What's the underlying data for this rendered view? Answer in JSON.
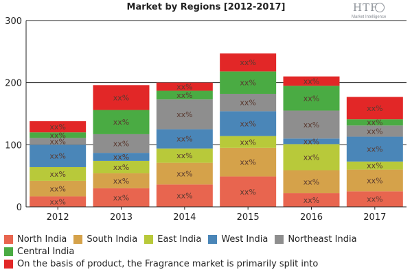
{
  "chart_data": {
    "type": "bar",
    "stacked": true,
    "title": "Market by Regions [2012-2017]",
    "xlabel": "",
    "ylabel": "",
    "ylim": [
      0,
      300
    ],
    "yticks": [
      0,
      100,
      200,
      300
    ],
    "grid": true,
    "legend_position": "bottom",
    "data_label": "xx%",
    "categories": [
      "2012",
      "2013",
      "2014",
      "2015",
      "2016",
      "2017"
    ],
    "series": [
      {
        "name": "North India",
        "color": "#e8654f",
        "values": [
          17,
          30,
          36,
          49,
          22,
          25
        ]
      },
      {
        "name": "South India",
        "color": "#d5a24a",
        "values": [
          25,
          24,
          35,
          46,
          37,
          35
        ]
      },
      {
        "name": "East India",
        "color": "#b8c93a",
        "values": [
          22,
          20,
          23,
          19,
          42,
          13
        ]
      },
      {
        "name": "West India",
        "color": "#4a86b8",
        "values": [
          36,
          13,
          31,
          40,
          9,
          40
        ]
      },
      {
        "name": "Northeast India",
        "color": "#8e8e8e",
        "values": [
          11,
          30,
          48,
          28,
          45,
          18
        ]
      },
      {
        "name": "Central India",
        "color": "#4aab43",
        "values": [
          9,
          39,
          14,
          36,
          40,
          10
        ]
      },
      {
        "name": "On the basis of product, the Fragrance market is primarily split into",
        "color": "#e22727",
        "values": [
          18,
          40,
          13,
          29,
          15,
          36
        ]
      }
    ]
  },
  "watermark": {
    "logo_text": "HTF",
    "logo_sub": "Market Intelligence"
  }
}
